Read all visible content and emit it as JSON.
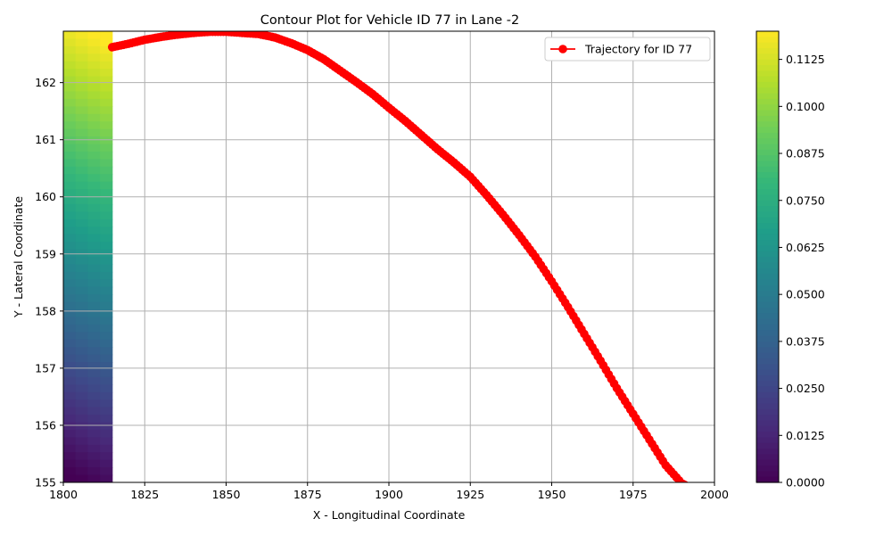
{
  "chart_data": {
    "type": "line",
    "title": "Contour Plot for Vehicle ID 77 in Lane -2",
    "xlabel": "X - Longitudinal Coordinate",
    "ylabel": "Y - Lateral Coordinate",
    "xlim": [
      1800,
      2000
    ],
    "ylim": [
      155,
      162.9
    ],
    "xticks": [
      "1800",
      "1825",
      "1850",
      "1875",
      "1900",
      "1925",
      "1950",
      "1975",
      "2000"
    ],
    "yticks": [
      "155",
      "156",
      "157",
      "158",
      "159",
      "160",
      "161",
      "162"
    ],
    "grid": true,
    "legend_position": "top-right",
    "series": [
      {
        "name": "Trajectory for ID 77",
        "color": "#ff0000",
        "marker": "circle",
        "x": [
          1815,
          1820,
          1825,
          1830,
          1835,
          1840,
          1845,
          1850,
          1855,
          1860,
          1865,
          1870,
          1875,
          1880,
          1885,
          1890,
          1895,
          1900,
          1905,
          1910,
          1915,
          1920,
          1925,
          1930,
          1935,
          1940,
          1945,
          1950,
          1955,
          1960,
          1965,
          1970,
          1975,
          1980,
          1985,
          1990,
          1991
        ],
        "y": [
          162.62,
          162.68,
          162.75,
          162.8,
          162.84,
          162.87,
          162.89,
          162.89,
          162.87,
          162.85,
          162.79,
          162.69,
          162.57,
          162.41,
          162.21,
          162.01,
          161.8,
          161.56,
          161.33,
          161.08,
          160.83,
          160.6,
          160.35,
          160.03,
          159.69,
          159.33,
          158.95,
          158.52,
          158.07,
          157.6,
          157.13,
          156.65,
          156.2,
          155.75,
          155.3,
          154.98,
          154.95
        ]
      }
    ],
    "contour": {
      "x_range": [
        1800,
        1815
      ],
      "colormap": "viridis",
      "levels": "vertical gradient along Y"
    },
    "colorbar": {
      "range": [
        0,
        0.12
      ],
      "ticks": [
        "0.0000",
        "0.0125",
        "0.0250",
        "0.0375",
        "0.0500",
        "0.0625",
        "0.0750",
        "0.0875",
        "0.1000",
        "0.1125"
      ]
    }
  }
}
